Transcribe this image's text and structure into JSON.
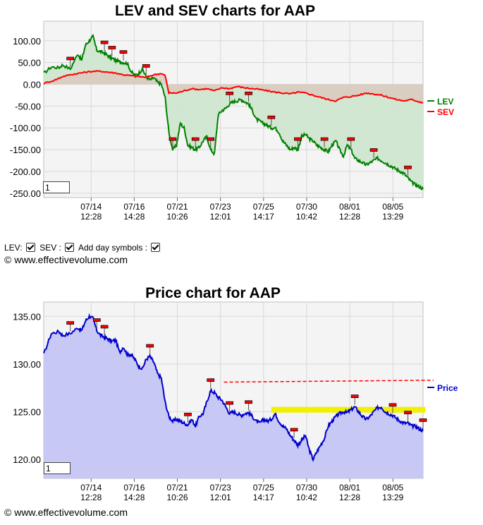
{
  "lev_chart": {
    "title": "LEV and SEV charts for AAP",
    "input_value": "1"
  },
  "price_chart": {
    "title": "Price chart for AAP",
    "input_value": "1"
  },
  "controls": {
    "lev_label": "LEV:",
    "sev_label": "SEV :",
    "day_symbols_label": "Add day symbols :"
  },
  "copyright": "© www.effectivevolume.com",
  "colors": {
    "lev": "#008000",
    "sev": "#ff0000",
    "lev_fill": "#cde6cd",
    "sev_fill": "#dcc8bf",
    "price": "#0000cc",
    "price_fill": "#c8c8f5",
    "band": "#f0f000",
    "trend": "#ff0000"
  },
  "chart_data": [
    {
      "type": "line",
      "title": "LEV and SEV charts for AAP",
      "x_ticks": [
        "07/14 12:28",
        "07/16 14:28",
        "07/21 10:26",
        "07/23 12:01",
        "07/25 14:17",
        "07/30 10:42",
        "08/01 12:28",
        "08/05 13:29"
      ],
      "ylim": [
        -260,
        145
      ],
      "y_ticks": [
        100,
        50,
        0,
        -50,
        -100,
        -150,
        -200,
        -250
      ],
      "y_tick_labels": [
        "100.00",
        "50.00",
        "0.00",
        "-50.00",
        "-100.00",
        "-150.00",
        "-200.00",
        "-250.00"
      ],
      "grid": true,
      "legend": "right",
      "series": [
        {
          "name": "LEV",
          "color": "#008000",
          "x": [
            0,
            4,
            8,
            10,
            14,
            18,
            20,
            22,
            24,
            26,
            28,
            30,
            32,
            34,
            36,
            38,
            40,
            42,
            44,
            46,
            48,
            50,
            52,
            54,
            56,
            58,
            60,
            62,
            64,
            66,
            68,
            70,
            72,
            74,
            76,
            78,
            80,
            82,
            84,
            86,
            88,
            90,
            92,
            94,
            96,
            98,
            100,
            102,
            104,
            106,
            108,
            110,
            112,
            114,
            116,
            118,
            120,
            122,
            124,
            126,
            128,
            130,
            132,
            134,
            136,
            138,
            140,
            142,
            144,
            146,
            148,
            150,
            152,
            154,
            156,
            158,
            160,
            162,
            164,
            166,
            168,
            170,
            172,
            174,
            176,
            178,
            180,
            182,
            184,
            186,
            188,
            190,
            192,
            194,
            196,
            198,
            200
          ],
          "values": [
            25,
            40,
            38,
            45,
            35,
            70,
            55,
            90,
            100,
            110,
            78,
            75,
            72,
            65,
            60,
            55,
            52,
            50,
            48,
            30,
            20,
            25,
            35,
            18,
            10,
            15,
            5,
            0,
            -30,
            -110,
            -150,
            -140,
            -90,
            -100,
            -140,
            -145,
            -150,
            -145,
            -130,
            -120,
            -150,
            -160,
            -70,
            -60,
            -55,
            -45,
            -40,
            -38,
            -35,
            -40,
            -45,
            -60,
            -80,
            -85,
            -90,
            -95,
            -100,
            -100,
            -110,
            -130,
            -140,
            -150,
            -145,
            -150,
            -120,
            -115,
            -125,
            -130,
            -140,
            -145,
            -150,
            -155,
            -140,
            -130,
            -150,
            -165,
            -140,
            -150,
            -170,
            -175,
            -180,
            -185,
            -180,
            -175,
            -170,
            -175,
            -180,
            -185,
            -190,
            -195,
            -200,
            -205,
            -215,
            -225,
            -230,
            -235,
            -240
          ]
        },
        {
          "name": "SEV",
          "color": "#ff0000",
          "x": [
            0,
            6,
            10,
            14,
            18,
            22,
            26,
            30,
            34,
            38,
            42,
            46,
            50,
            54,
            58,
            62,
            64,
            66,
            70,
            74,
            78,
            82,
            86,
            90,
            94,
            98,
            102,
            106,
            110,
            114,
            118,
            122,
            126,
            130,
            134,
            138,
            142,
            146,
            150,
            154,
            158,
            162,
            166,
            170,
            174,
            178,
            182,
            186,
            190,
            194,
            198,
            200
          ],
          "values": [
            2,
            10,
            18,
            22,
            25,
            28,
            30,
            30,
            28,
            26,
            22,
            20,
            18,
            16,
            22,
            25,
            20,
            -20,
            -20,
            -15,
            -10,
            -12,
            -10,
            -15,
            -8,
            -10,
            -5,
            -8,
            -10,
            -12,
            -15,
            -18,
            -20,
            -22,
            -18,
            -20,
            -25,
            -30,
            -35,
            -38,
            -30,
            -28,
            -25,
            -20,
            -22,
            -25,
            -30,
            -35,
            -38,
            -35,
            -40,
            -42
          ]
        }
      ]
    },
    {
      "type": "line",
      "title": "Price chart for AAP",
      "x_ticks": [
        "07/14 12:28",
        "07/16 14:28",
        "07/21 10:26",
        "07/23 12:01",
        "07/25 14:17",
        "07/30 10:42",
        "08/01 12:28",
        "08/05 13:29"
      ],
      "ylim": [
        118,
        136.5
      ],
      "y_ticks": [
        135,
        130,
        125,
        120
      ],
      "y_tick_labels": [
        "135.00",
        "130.00",
        "125.00",
        "120.00"
      ],
      "grid": true,
      "legend": "right",
      "series": [
        {
          "name": "Price",
          "color": "#0000cc",
          "x": [
            0,
            4,
            8,
            10,
            14,
            18,
            20,
            22,
            24,
            26,
            28,
            30,
            32,
            34,
            36,
            38,
            40,
            42,
            44,
            46,
            48,
            50,
            52,
            54,
            56,
            58,
            60,
            62,
            64,
            66,
            68,
            70,
            72,
            74,
            76,
            78,
            80,
            82,
            84,
            86,
            88,
            90,
            92,
            94,
            96,
            98,
            100,
            102,
            104,
            106,
            108,
            110,
            112,
            114,
            116,
            118,
            120,
            122,
            124,
            126,
            128,
            130,
            132,
            134,
            136,
            138,
            140,
            142,
            144,
            146,
            148,
            150,
            152,
            154,
            156,
            158,
            160,
            162,
            164,
            166,
            168,
            170,
            172,
            174,
            176,
            178,
            180,
            182,
            184,
            186,
            188,
            190,
            192,
            194,
            196,
            198,
            200
          ],
          "values": [
            131,
            133.2,
            133.4,
            133.0,
            133.2,
            133.8,
            133.5,
            134.5,
            135.0,
            134.8,
            133.5,
            133.0,
            132.8,
            132.6,
            132.4,
            132.5,
            131.2,
            131.8,
            131.0,
            131.0,
            130.5,
            129.8,
            129.5,
            130.5,
            130.8,
            130.2,
            129.0,
            128.5,
            126.0,
            124.5,
            124.0,
            124.2,
            124.0,
            123.8,
            123.6,
            124.2,
            123.5,
            124.5,
            124.8,
            126.0,
            127.2,
            127.0,
            126.5,
            126.2,
            125.5,
            124.8,
            125.0,
            124.8,
            124.6,
            124.8,
            124.9,
            124.5,
            124.0,
            123.8,
            124.2,
            124.0,
            124.2,
            124.8,
            124.0,
            123.5,
            123.2,
            122.5,
            122.0,
            121.5,
            122.0,
            122.5,
            121.0,
            120.0,
            120.8,
            121.5,
            122.2,
            123.5,
            124.0,
            124.5,
            124.8,
            125.0,
            124.9,
            125.2,
            125.5,
            125.0,
            124.5,
            124.2,
            124.5,
            125.0,
            125.4,
            125.5,
            125.0,
            124.8,
            124.6,
            124.3,
            124.0,
            123.8,
            123.8,
            123.5,
            123.5,
            123.2,
            123.0
          ]
        }
      ],
      "resistance_band": [
        124.9,
        125.5
      ],
      "trend_line": [
        128.1,
        128.3
      ]
    }
  ]
}
